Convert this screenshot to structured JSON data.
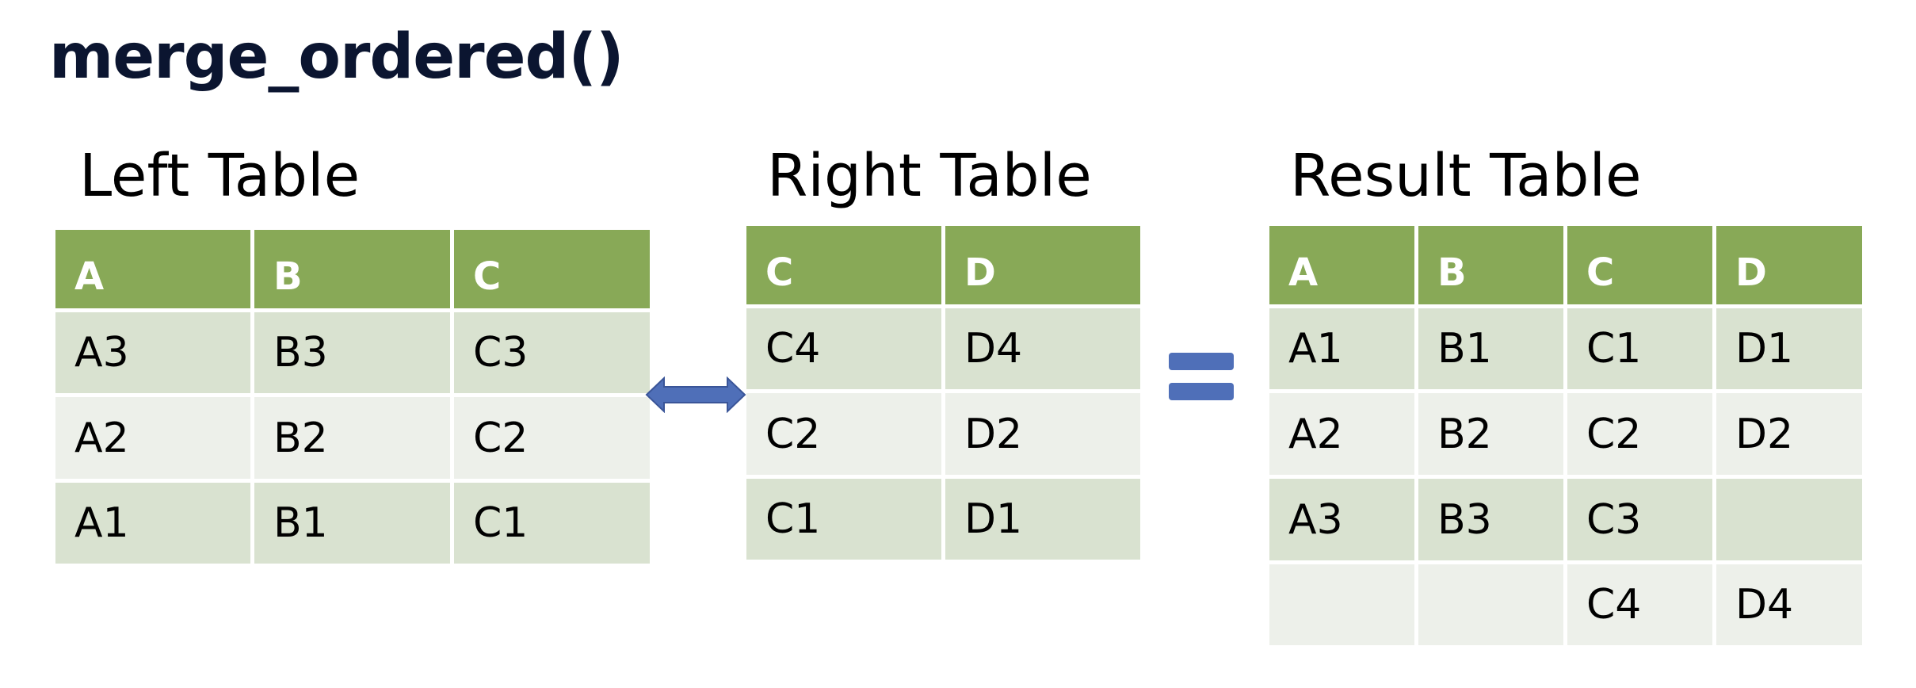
{
  "title": "merge_ordered()",
  "left_table": {
    "title": "Left Table",
    "headers": [
      "A",
      "B",
      "C"
    ],
    "rows": [
      [
        "A3",
        "B3",
        "C3"
      ],
      [
        "A2",
        "B2",
        "C2"
      ],
      [
        "A1",
        "B1",
        "C1"
      ]
    ]
  },
  "right_table": {
    "title": "Right Table",
    "headers": [
      "C",
      "D"
    ],
    "rows": [
      [
        "C4",
        "D4"
      ],
      [
        "C2",
        "D2"
      ],
      [
        "C1",
        "D1"
      ]
    ]
  },
  "result_table": {
    "title": "Result Table",
    "headers": [
      "A",
      "B",
      "C",
      "D"
    ],
    "rows": [
      [
        "A1",
        "B1",
        "C1",
        "D1"
      ],
      [
        "A2",
        "B2",
        "C2",
        "D2"
      ],
      [
        "A3",
        "B3",
        "C3",
        ""
      ],
      [
        "",
        "",
        "C4",
        "D4"
      ]
    ]
  },
  "colors": {
    "header_green": "#88a957",
    "row_dark": "#d9e2d0",
    "row_light": "#edf0ea",
    "connector_blue": "#4f6fb8",
    "title_navy": "#0b1530"
  },
  "icons": {
    "join": "double-arrow-icon",
    "result": "equals-icon"
  }
}
